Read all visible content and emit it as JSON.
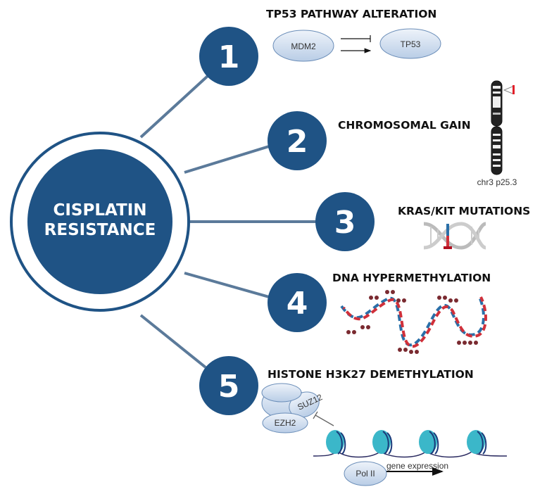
{
  "colors": {
    "primary": "#1f5385",
    "connector": "#5b7a9a",
    "strand_red": "#d0303a",
    "strand_blue": "#2a6fa8",
    "nucleosome": "#3bb7c9",
    "methyl": "#7a2a30"
  },
  "center": {
    "line1": "CISPLATIN",
    "line2": "RESISTANCE"
  },
  "items": [
    {
      "number": "1",
      "title": "TP53 PATHWAY ALTERATION",
      "labels": {
        "left": "MDM2",
        "right": "TP53"
      }
    },
    {
      "number": "2",
      "title": "CHROMOSOMAL GAIN",
      "labels": {
        "chromosome": "chr3 p25.3"
      }
    },
    {
      "number": "3",
      "title": "KRAS/KIT MUTATIONS"
    },
    {
      "number": "4",
      "title": "DNA HYPERMETHYLATION"
    },
    {
      "number": "5",
      "title": "HISTONE H3K27 DEMETHYLATION",
      "labels": {
        "suz12": "SUZ12",
        "ezh2": "EZH2",
        "pol": "Pol II",
        "expression": "gene expression"
      }
    }
  ]
}
